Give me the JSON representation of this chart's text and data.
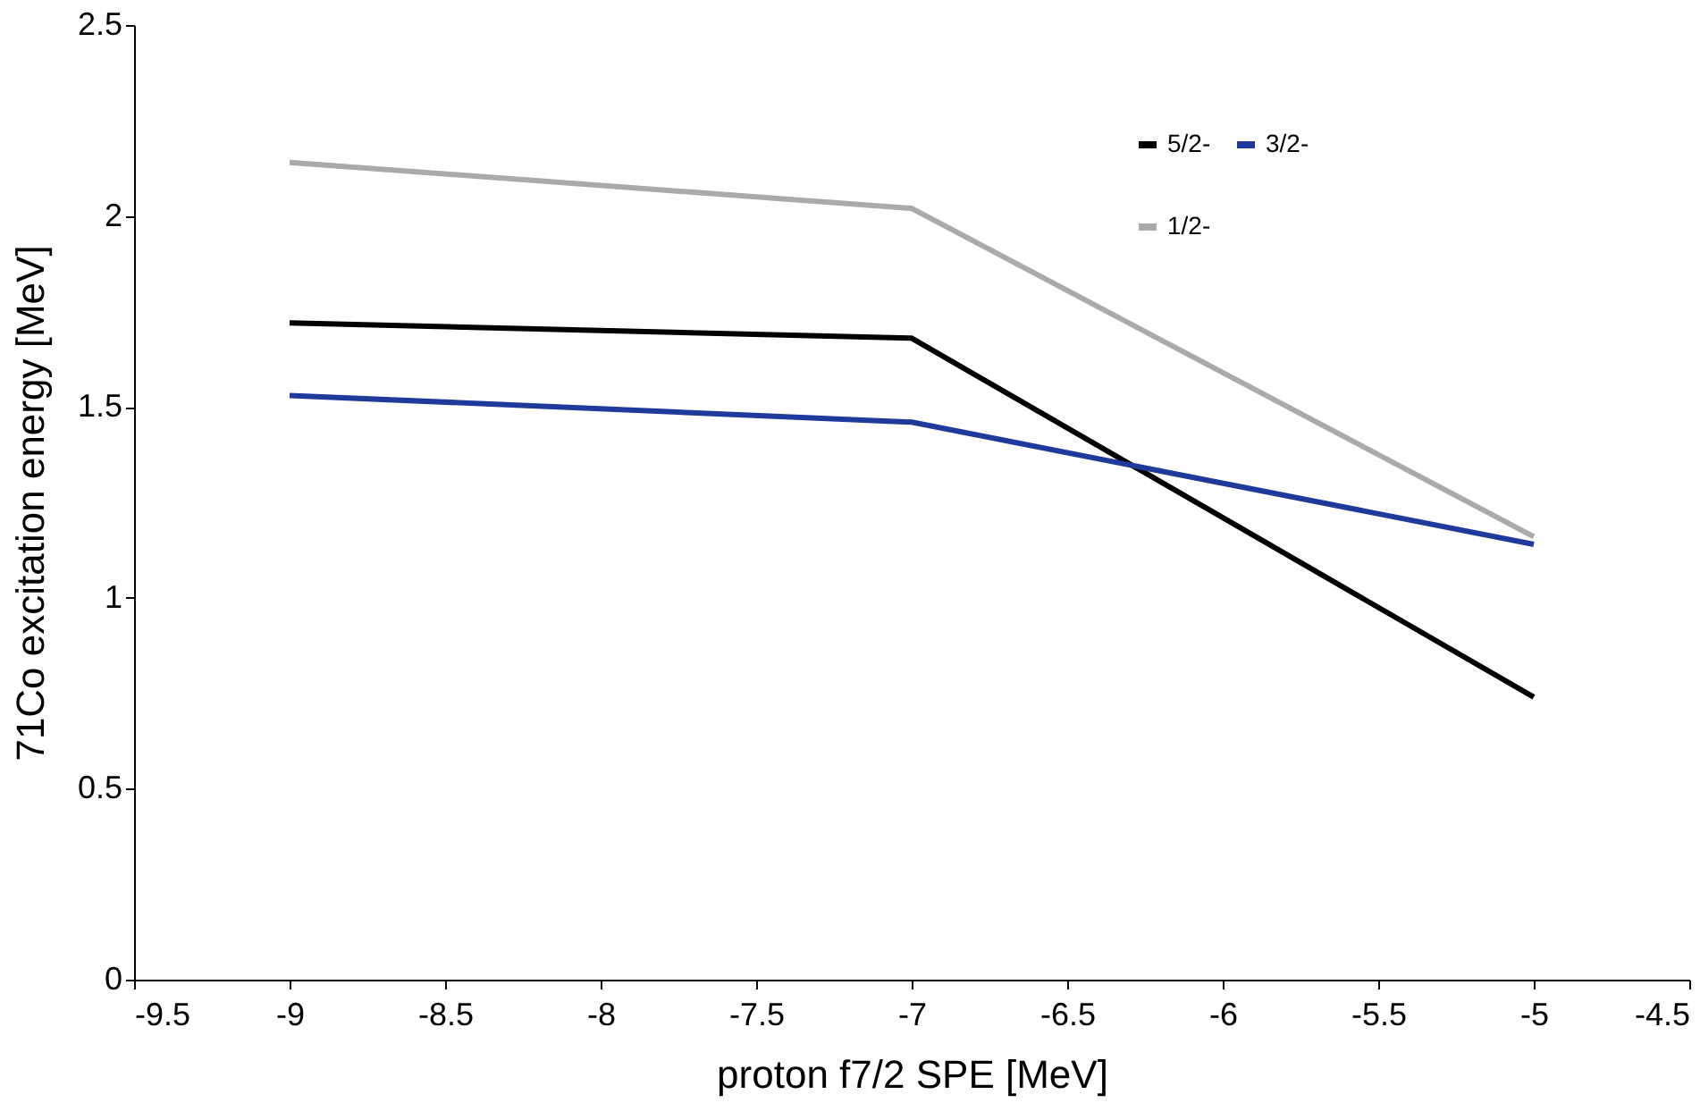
{
  "chart_data": {
    "type": "line",
    "xlabel": "proton f7/2 SPE  [MeV]",
    "ylabel": "71Co excitation energy [MeV]",
    "x": [
      -9,
      -7,
      -5
    ],
    "series": [
      {
        "name": "5/2-",
        "color": "#000000",
        "values": [
          1.72,
          1.68,
          0.74
        ]
      },
      {
        "name": "3/2-",
        "color": "#1f3a9a",
        "values": [
          1.53,
          1.46,
          1.14
        ]
      },
      {
        "name": "1/2-",
        "color": "#aaaaaa",
        "values": [
          2.14,
          2.02,
          1.16
        ]
      }
    ],
    "xlim": [
      -9.5,
      -4.5
    ],
    "xticks": [
      -9.5,
      -9,
      -8.5,
      -8,
      -7.5,
      -7,
      -6.5,
      -6,
      -5.5,
      -5,
      -4.5
    ],
    "ylim": [
      0,
      2.5
    ],
    "yticks": [
      0,
      0.5,
      1,
      1.5,
      2,
      2.5
    ],
    "grid": false,
    "legend": "top right",
    "marker": "none",
    "line_style": "solid"
  }
}
